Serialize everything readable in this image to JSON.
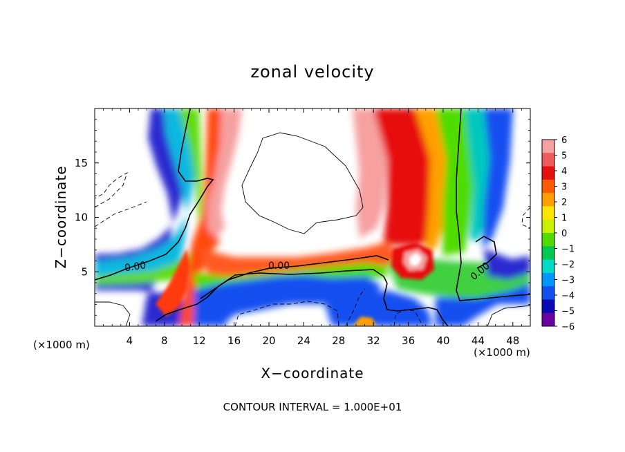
{
  "chart_data": {
    "type": "heatmap",
    "title": "zonal velocity",
    "xlabel": "X−coordinate",
    "ylabel": "Z−coordinate",
    "x_unit": "(×1000 m)",
    "z_unit": "(×1000 m)",
    "xlim": [
      0,
      50
    ],
    "ylim": [
      0,
      20
    ],
    "x_ticks": [
      4,
      8,
      12,
      16,
      20,
      24,
      28,
      32,
      36,
      40,
      44,
      48
    ],
    "y_ticks": [
      5,
      10,
      15
    ],
    "colorbar": {
      "ticks": [
        6,
        5,
        4,
        3,
        2,
        1,
        0,
        -1,
        -2,
        -3,
        -4,
        -5,
        -6
      ],
      "colors": [
        "#f6a0a0",
        "#ef5a5a",
        "#e61010",
        "#ff5a00",
        "#ffa000",
        "#ffe600",
        "#c8f000",
        "#50dc00",
        "#00c850",
        "#00dcc8",
        "#0096ff",
        "#1450f0",
        "#0a0ab4",
        "#6a00a0"
      ]
    },
    "contour_label": "0.00",
    "footnote": "CONTOUR INTERVAL = 1.000E+01",
    "grid": false,
    "legend_placement": "right"
  }
}
